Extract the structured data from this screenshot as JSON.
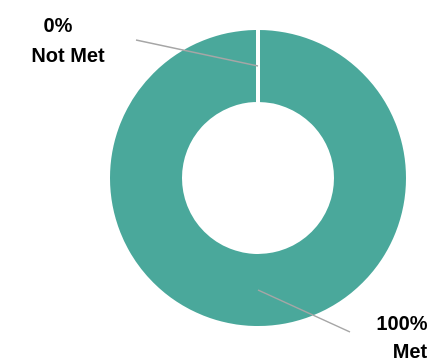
{
  "chart_data": {
    "type": "pie",
    "variant": "donut",
    "categories": [
      "Not Met",
      "Met"
    ],
    "values": [
      0,
      100
    ],
    "colors": [
      "#ffffff",
      "#4aa89b"
    ],
    "labels": [
      {
        "percent": "0%",
        "name": "Not Met"
      },
      {
        "percent": "100%",
        "name": "Met"
      }
    ],
    "title": "",
    "legend": "none"
  }
}
